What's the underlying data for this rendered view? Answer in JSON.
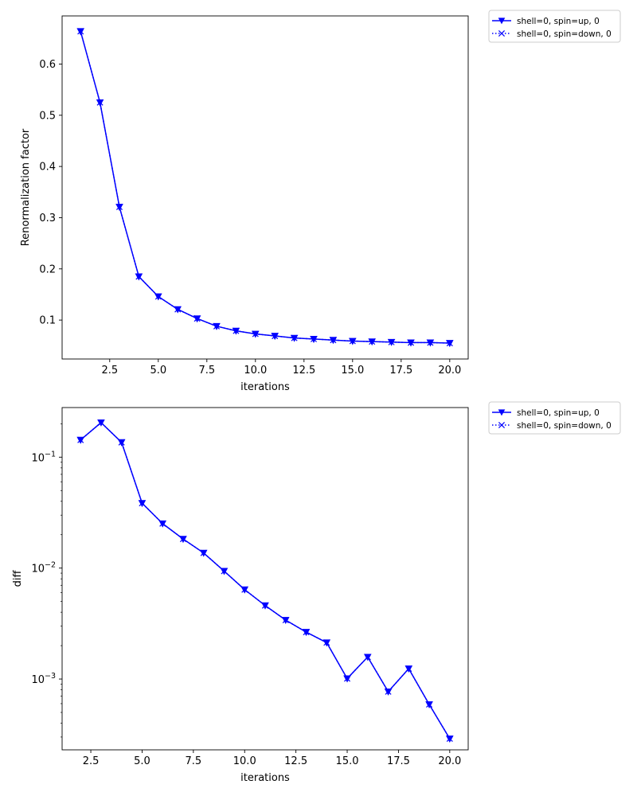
{
  "colors": {
    "series": "#0000ff",
    "frame": "#000000",
    "legend_border": "#cccccc"
  },
  "chart_data": [
    {
      "type": "line",
      "yscale": "linear",
      "xlabel": "iterations",
      "ylabel": "Renormalization factor",
      "xlim": [
        0.05,
        20.95
      ],
      "ylim": [
        0.024,
        0.694
      ],
      "xticks": [
        2.5,
        5.0,
        7.5,
        10.0,
        12.5,
        15.0,
        17.5,
        20.0
      ],
      "xtick_labels": [
        "2.5",
        "5.0",
        "7.5",
        "10.0",
        "12.5",
        "15.0",
        "17.5",
        "20.0"
      ],
      "yticks": [
        0.1,
        0.2,
        0.3,
        0.4,
        0.5,
        0.6
      ],
      "ytick_labels": [
        "0.1",
        "0.2",
        "0.3",
        "0.4",
        "0.5",
        "0.6"
      ],
      "legend_position": "outside-top-right",
      "series": [
        {
          "name": "shell=0, spin=up, 0",
          "marker": "triangle-down",
          "linestyle": "solid",
          "x": [
            1,
            2,
            3,
            4,
            5,
            6,
            7,
            8,
            9,
            10,
            11,
            12,
            13,
            14,
            15,
            16,
            17,
            18,
            19,
            20
          ],
          "values": [
            0.664,
            0.525,
            0.321,
            0.185,
            0.146,
            0.121,
            0.103,
            0.088,
            0.079,
            0.073,
            0.069,
            0.065,
            0.063,
            0.061,
            0.059,
            0.058,
            0.057,
            0.056,
            0.056,
            0.055
          ]
        },
        {
          "name": "shell=0, spin=down, 0",
          "marker": "x",
          "linestyle": "dotted",
          "x": [
            1,
            2,
            3,
            4,
            5,
            6,
            7,
            8,
            9,
            10,
            11,
            12,
            13,
            14,
            15,
            16,
            17,
            18,
            19,
            20
          ],
          "values": [
            0.664,
            0.525,
            0.321,
            0.185,
            0.146,
            0.121,
            0.103,
            0.088,
            0.079,
            0.073,
            0.069,
            0.065,
            0.063,
            0.061,
            0.059,
            0.058,
            0.057,
            0.056,
            0.056,
            0.055
          ]
        }
      ]
    },
    {
      "type": "line",
      "yscale": "log",
      "xlabel": "iterations",
      "ylabel": "diff",
      "xlim": [
        1.1,
        20.9
      ],
      "ylim": [
        0.00023,
        0.28
      ],
      "xticks": [
        2.5,
        5.0,
        7.5,
        10.0,
        12.5,
        15.0,
        17.5,
        20.0
      ],
      "xtick_labels": [
        "2.5",
        "5.0",
        "7.5",
        "10.0",
        "12.5",
        "15.0",
        "17.5",
        "20.0"
      ],
      "yticks": [
        0.001,
        0.01,
        0.1
      ],
      "ytick_labels": [
        {
          "base": "10",
          "exp": "−3"
        },
        {
          "base": "10",
          "exp": "−2"
        },
        {
          "base": "10",
          "exp": "−1"
        }
      ],
      "legend_position": "outside-top-right",
      "series": [
        {
          "name": "shell=0, spin=up, 0",
          "marker": "triangle-down",
          "linestyle": "solid",
          "x": [
            2,
            3,
            4,
            5,
            6,
            7,
            8,
            9,
            10,
            11,
            12,
            13,
            14,
            15,
            16,
            17,
            18,
            19,
            20
          ],
          "values": [
            0.143,
            0.205,
            0.136,
            0.0385,
            0.0252,
            0.0183,
            0.0137,
            0.0094,
            0.0064,
            0.0046,
            0.0034,
            0.00265,
            0.00213,
            0.00101,
            0.00158,
            0.00077,
            0.00124,
            0.00059,
            0.00029
          ]
        },
        {
          "name": "shell=0, spin=down, 0",
          "marker": "x",
          "linestyle": "dotted",
          "x": [
            2,
            3,
            4,
            5,
            6,
            7,
            8,
            9,
            10,
            11,
            12,
            13,
            14,
            15,
            16,
            17,
            18,
            19,
            20
          ],
          "values": [
            0.143,
            0.205,
            0.136,
            0.0385,
            0.0252,
            0.0183,
            0.0137,
            0.0094,
            0.0064,
            0.0046,
            0.0034,
            0.00265,
            0.00213,
            0.00101,
            0.00158,
            0.00077,
            0.00124,
            0.00059,
            0.00029
          ]
        }
      ]
    }
  ]
}
